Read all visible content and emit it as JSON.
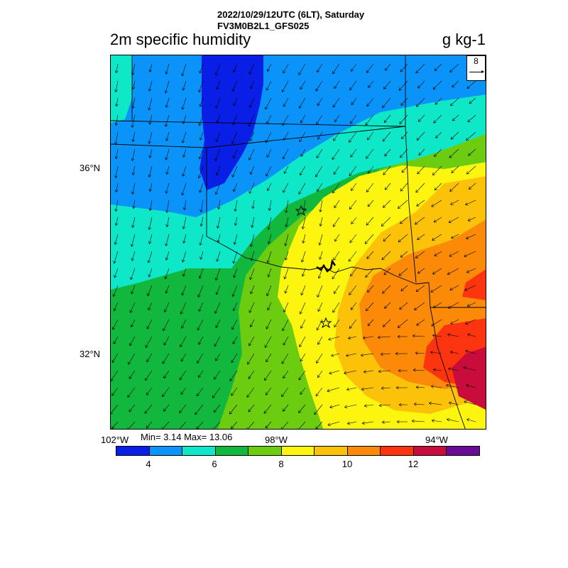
{
  "header": {
    "date_line": "2022/10/29/12UTC (6LT), Saturday",
    "run_line": "FV3M0B2L1_GFS025",
    "variable": "2m specific humidity",
    "units": "g kg-1"
  },
  "map": {
    "lat_ticks": [
      "36°N",
      "32°N"
    ],
    "lon_ticks": [
      "102°W",
      "98°W",
      "94°W"
    ],
    "reference_vector": "8",
    "markers": [
      "star",
      "star"
    ]
  },
  "stats": "Min= 3.14 Max= 13.06",
  "colorbar": {
    "colors": [
      "#0a1fe6",
      "#0a94fa",
      "#0fe8c8",
      "#12b83e",
      "#6ccd10",
      "#fbf510",
      "#fcc20a",
      "#fb8a08",
      "#fc3410",
      "#c80d3c",
      "#6a0b98"
    ],
    "labels": [
      "4",
      "6",
      "8",
      "10",
      "12"
    ]
  }
}
